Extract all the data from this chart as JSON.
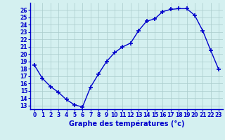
{
  "hours": [
    0,
    1,
    2,
    3,
    4,
    5,
    6,
    7,
    8,
    9,
    10,
    11,
    12,
    13,
    14,
    15,
    16,
    17,
    18,
    19,
    20,
    21,
    22,
    23
  ],
  "temperatures": [
    18.5,
    16.7,
    15.6,
    14.8,
    13.8,
    13.1,
    12.8,
    15.5,
    17.3,
    19.0,
    20.2,
    21.0,
    21.5,
    23.2,
    24.5,
    24.8,
    25.8,
    26.1,
    26.2,
    26.2,
    25.3,
    23.2,
    20.5,
    17.9
  ],
  "xlim": [
    -0.5,
    23.5
  ],
  "ylim": [
    12.5,
    27.0
  ],
  "yticks": [
    13,
    14,
    15,
    16,
    17,
    18,
    19,
    20,
    21,
    22,
    23,
    24,
    25,
    26
  ],
  "xticks": [
    0,
    1,
    2,
    3,
    4,
    5,
    6,
    7,
    8,
    9,
    10,
    11,
    12,
    13,
    14,
    15,
    16,
    17,
    18,
    19,
    20,
    21,
    22,
    23
  ],
  "xlabel": "Graphe des températures (°c)",
  "line_color": "#0000cc",
  "marker": "+",
  "background_color": "#d4f0f0",
  "grid_color": "#aacccc",
  "axis_label_color": "#0000cc",
  "tick_color": "#0000cc",
  "spine_color": "#0000cc"
}
